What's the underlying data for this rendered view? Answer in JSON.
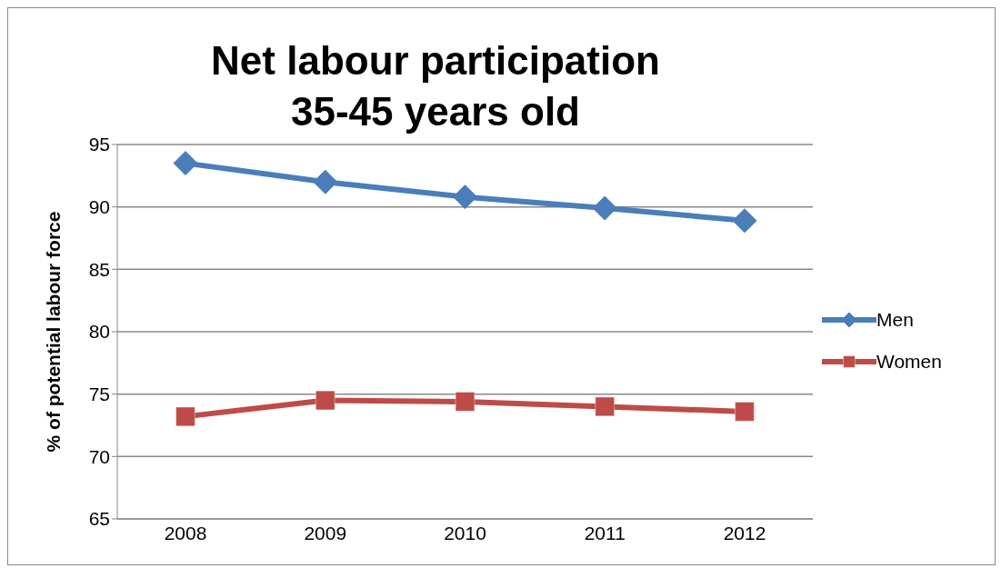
{
  "chart_data": {
    "type": "line",
    "title": "Net labour participation\n35-45 years old",
    "ylabel": "% of potential labour force",
    "categories": [
      "2008",
      "2009",
      "2010",
      "2011",
      "2012"
    ],
    "series": [
      {
        "name": "Men",
        "color": "#4a7ebb",
        "marker": "diamond",
        "values": [
          93.5,
          92.0,
          90.8,
          89.9,
          88.9
        ]
      },
      {
        "name": "Women",
        "color": "#be4b48",
        "marker": "square",
        "values": [
          73.2,
          74.5,
          74.4,
          74.0,
          73.6
        ]
      }
    ],
    "ylim": [
      65,
      95
    ],
    "yticks": [
      65,
      70,
      75,
      80,
      85,
      90,
      95
    ],
    "grid": "y",
    "legend": "right",
    "line_style": "solid"
  }
}
